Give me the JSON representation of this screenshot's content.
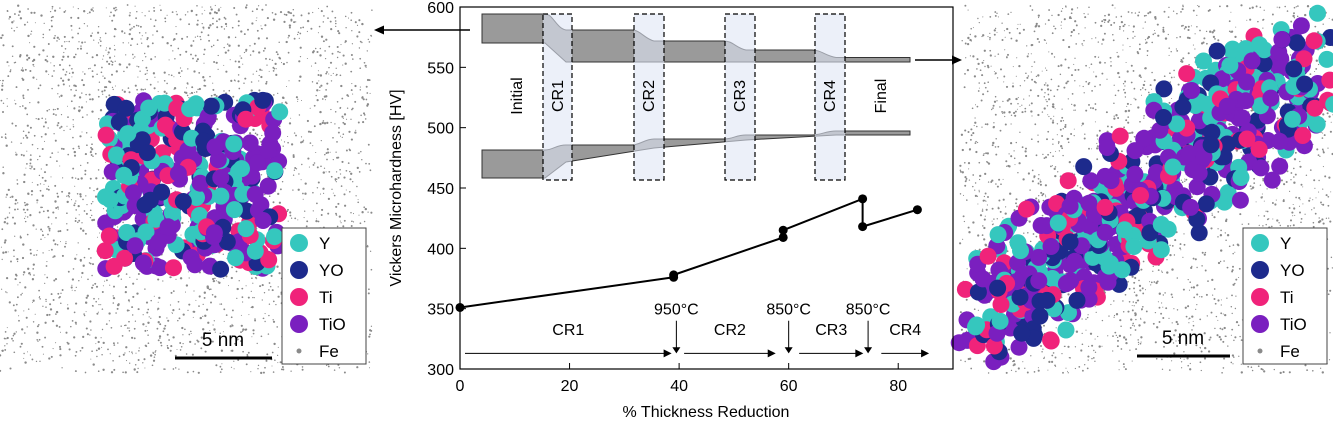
{
  "left_panel": {
    "legend": [
      {
        "label": "Y",
        "color": "#35c7be"
      },
      {
        "label": "YO",
        "color": "#1d2a8c"
      },
      {
        "label": "Ti",
        "color": "#f0237a"
      },
      {
        "label": "TiO",
        "color": "#7a1fbf"
      },
      {
        "label": "Fe",
        "color": "#8a8a8a"
      }
    ],
    "scale_bar": "5 nm"
  },
  "right_panel": {
    "legend": [
      {
        "label": "Y",
        "color": "#35c7be"
      },
      {
        "label": "YO",
        "color": "#1d2a8c"
      },
      {
        "label": "Ti",
        "color": "#f0237a"
      },
      {
        "label": "TiO",
        "color": "#7a1fbf"
      },
      {
        "label": "Fe",
        "color": "#8a8a8a"
      }
    ],
    "scale_bar": "5 nm"
  },
  "chart_data": {
    "type": "line",
    "xlabel": "% Thickness Reduction",
    "ylabel": "Vickers Microhardness [HV]",
    "xlim": [
      0,
      90
    ],
    "ylim": [
      300,
      600
    ],
    "xticks": [
      0,
      20,
      40,
      60,
      80
    ],
    "yticks": [
      300,
      350,
      400,
      450,
      500,
      550,
      600
    ],
    "series": [
      {
        "x": [
          0,
          39,
          39,
          59,
          59,
          73.5,
          73.5,
          83.5
        ],
        "y": [
          351,
          376,
          378,
          409,
          415,
          441,
          418,
          432
        ]
      }
    ],
    "stages": [
      {
        "label": "CR1",
        "x_start": 0,
        "x_end": 39
      },
      {
        "label": "CR2",
        "x_start": 40,
        "x_end": 58
      },
      {
        "label": "CR3",
        "x_start": 61,
        "x_end": 74
      },
      {
        "label": "CR4",
        "x_start": 76,
        "x_end": 86
      }
    ],
    "anneal_labels": [
      {
        "label": "950°C",
        "x": 39.5
      },
      {
        "label": "850°C",
        "x": 60
      },
      {
        "label": "850°C",
        "x": 74.5
      }
    ],
    "inset": {
      "labels": [
        "Initial",
        "CR1",
        "CR2",
        "CR3",
        "CR4",
        "Final"
      ]
    },
    "grid": false
  }
}
